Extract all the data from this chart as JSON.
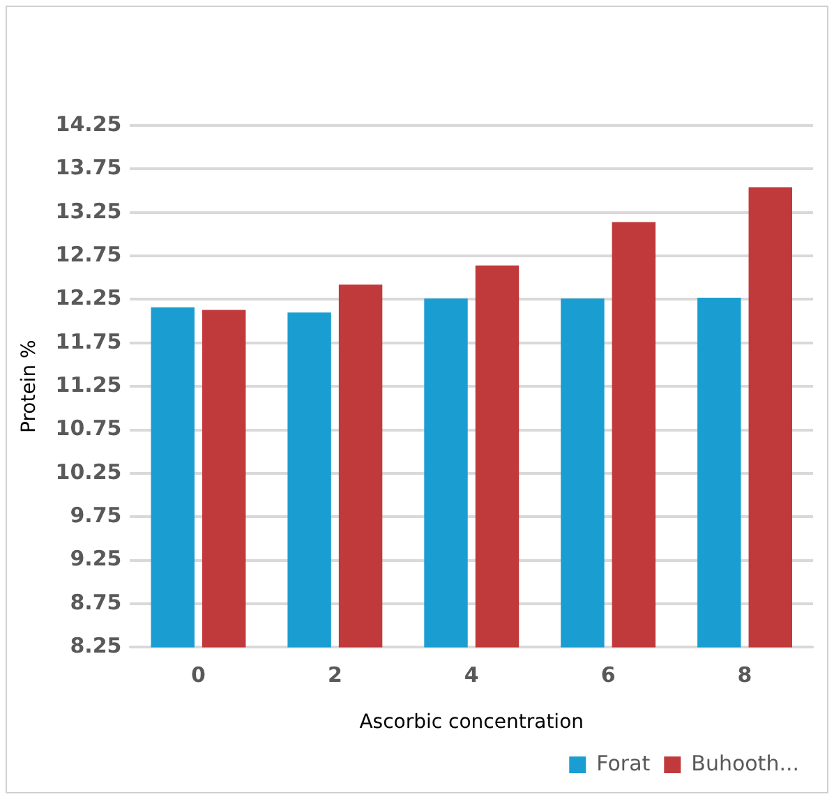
{
  "chart_data": {
    "type": "bar",
    "xlabel": "Ascorbic concentration",
    "ylabel": "Protein %",
    "categories": [
      "0",
      "2",
      "4",
      "6",
      "8"
    ],
    "series": [
      {
        "name": "Forat",
        "color": "#1a9ed2",
        "values": [
          12.16,
          12.1,
          12.26,
          12.26,
          12.27
        ]
      },
      {
        "name": "Buhooth...",
        "color": "#c0393b",
        "values": [
          12.13,
          12.42,
          12.64,
          13.14,
          13.54
        ]
      }
    ],
    "ylim": [
      8.25,
      14.25
    ],
    "yticks": [
      8.25,
      8.75,
      9.25,
      9.75,
      10.25,
      10.75,
      11.25,
      11.75,
      12.25,
      12.75,
      13.25,
      13.75,
      14.25
    ],
    "grid": "y",
    "legend": "bottom right"
  }
}
